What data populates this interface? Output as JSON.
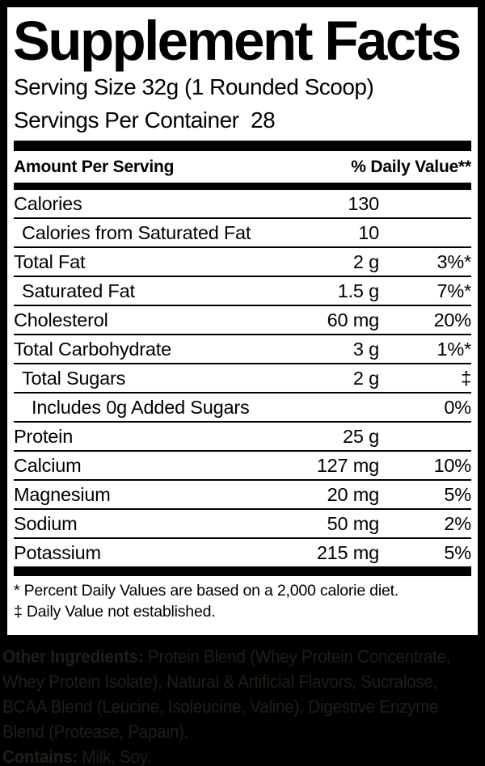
{
  "colors": {
    "page_bg": "#000000",
    "panel_bg": "#ffffff",
    "text": "#000000",
    "ingredients_text": "#211e18"
  },
  "panel": {
    "title": "Supplement Facts",
    "serving_size": "Serving Size 32g (1 Rounded Scoop)",
    "servings_per_container": "Servings Per Container  28",
    "columns": {
      "amount_header": "Amount Per Serving",
      "dv_header": "% Daily Value**"
    },
    "rows": [
      {
        "name": "Calories",
        "amount": "130",
        "dv": "",
        "indent": 0
      },
      {
        "name": "Calories from Saturated Fat",
        "amount": "10",
        "dv": "",
        "indent": 1
      },
      {
        "name": "Total Fat",
        "amount": "2 g",
        "dv": "3%*",
        "indent": 0
      },
      {
        "name": "Saturated Fat",
        "amount": "1.5 g",
        "dv": "7%*",
        "indent": 1
      },
      {
        "name": "Cholesterol",
        "amount": "60 mg",
        "dv": "20%",
        "indent": 0
      },
      {
        "name": "Total Carbohydrate",
        "amount": "3 g",
        "dv": "1%*",
        "indent": 0
      },
      {
        "name": "Total Sugars",
        "amount": "2 g",
        "dv": "‡",
        "indent": 1
      },
      {
        "name": "Includes 0g Added Sugars",
        "amount": "",
        "dv": "0%",
        "indent": 2
      },
      {
        "name": "Protein",
        "amount": "25 g",
        "dv": "",
        "indent": 0
      },
      {
        "name": "Calcium",
        "amount": "127 mg",
        "dv": "10%",
        "indent": 0
      },
      {
        "name": "Magnesium",
        "amount": "20 mg",
        "dv": "5%",
        "indent": 0
      },
      {
        "name": "Sodium",
        "amount": "50 mg",
        "dv": "2%",
        "indent": 0
      },
      {
        "name": "Potassium",
        "amount": "215 mg",
        "dv": "5%",
        "indent": 0
      }
    ],
    "footnotes": [
      "* Percent Daily Values are based on a 2,000 calorie diet.",
      "‡ Daily Value not established."
    ]
  },
  "ingredients": {
    "other_label": "Other Ingredients:",
    "line1_rest": " Protein Blend (Whey Protein Concentrate,",
    "line2": "Whey Protein Isolate), Natural & Artificial Flavors, Sucralose,",
    "line3": "BCAA Blend (Leucine, Isoleucine, Valine), Digestive Enzyme",
    "line4": "Blend (Protease, Papain).",
    "contains_label": "Contains:",
    "contains_rest": " Milk, Soy.",
    "full_text": "Other Ingredients: Protein Blend (Whey Protein Concentrate, Whey Protein Isolate), Natural & Artificial Flavors, Sucralose, BCAA Blend (Leucine, Isoleucine, Valine), Digestive Enzyme Blend (Protease, Papain). Contains: Milk, Soy."
  }
}
